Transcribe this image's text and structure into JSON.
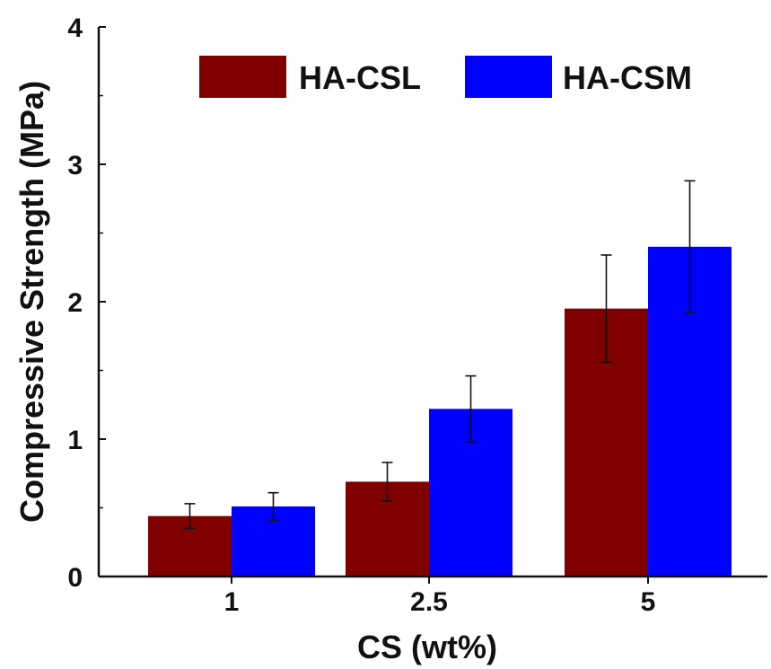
{
  "chart_data": {
    "type": "bar",
    "title": "",
    "xlabel": "CS (wt%)",
    "ylabel": "Compressive Strength (MPa)",
    "categories": [
      "1",
      "2.5",
      "5"
    ],
    "ylim": [
      0,
      4
    ],
    "yticks": [
      0,
      1,
      2,
      3,
      4
    ],
    "grid": false,
    "legend_position": "top-right",
    "series": [
      {
        "name": "HA-CSL",
        "color": "#800000",
        "values": [
          0.44,
          0.69,
          1.95
        ],
        "errors": [
          0.09,
          0.14,
          0.39
        ]
      },
      {
        "name": "HA-CSM",
        "color": "#0000ff",
        "values": [
          0.51,
          1.22,
          2.4
        ],
        "errors": [
          0.1,
          0.24,
          0.48
        ]
      }
    ]
  }
}
